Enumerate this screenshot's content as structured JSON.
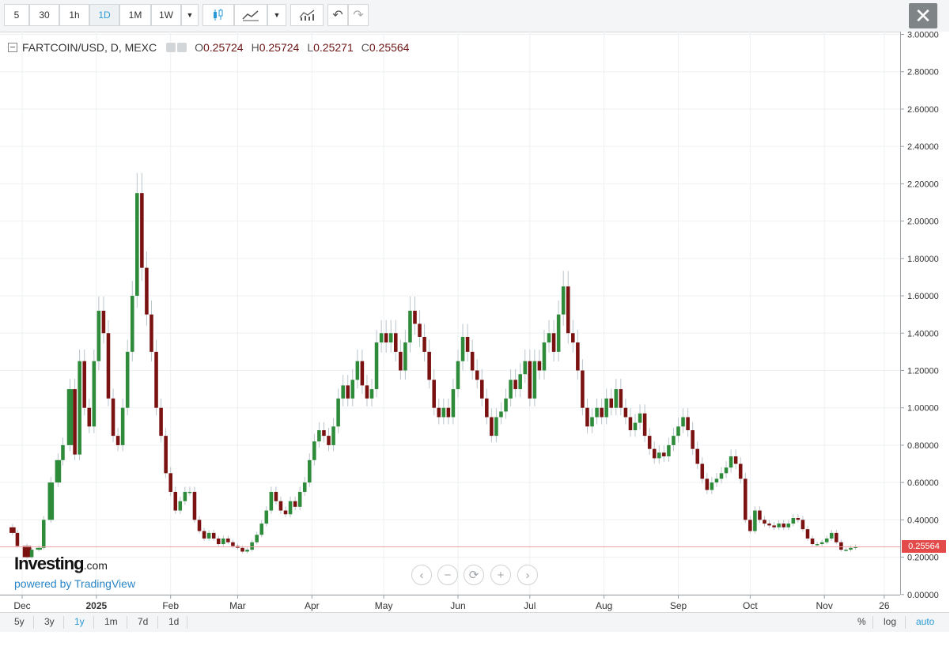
{
  "toolbar": {
    "intervals": [
      "5",
      "30",
      "1h",
      "1D",
      "1M",
      "1W"
    ],
    "active_interval": "1D",
    "close_glyph": "✕"
  },
  "legend": {
    "symbol": "FARTCOIN/USD, D, MEXC",
    "open_label": "O",
    "open": "0.25724",
    "high_label": "H",
    "high": "0.25724",
    "low_label": "L",
    "low": "0.25271",
    "close_label": "C",
    "close": "0.25564"
  },
  "branding": {
    "name": "Investing",
    "domain": ".com",
    "powered": "powered by TradingView"
  },
  "nav_controls": [
    "‹",
    "−",
    "⟳",
    "+",
    "›"
  ],
  "range_buttons": [
    "5y",
    "3y",
    "1y",
    "1m",
    "7d",
    "1d"
  ],
  "active_range": "1y",
  "scale_buttons": [
    "%",
    "log",
    "auto"
  ],
  "active_scale": "auto",
  "colors": {
    "up": "#2e8b3a",
    "down": "#7a1212",
    "wick": "#b9c4cc",
    "last_line": "#f0a0a0",
    "last_tag": "#e34a4a"
  },
  "chart_data": {
    "type": "candlestick",
    "ylim": [
      0,
      3.0
    ],
    "y_ticks": [
      "0.00000",
      "0.20000",
      "0.40000",
      "0.60000",
      "0.80000",
      "1.00000",
      "1.20000",
      "1.40000",
      "1.60000",
      "1.80000",
      "2.00000",
      "2.20000",
      "2.40000",
      "2.60000",
      "2.80000",
      "3.00000"
    ],
    "x_ticks": [
      {
        "label": "Dec",
        "day": 0
      },
      {
        "label": "2025",
        "day": 31
      },
      {
        "label": "Feb",
        "day": 62
      },
      {
        "label": "Mar",
        "day": 90
      },
      {
        "label": "Apr",
        "day": 121
      },
      {
        "label": "May",
        "day": 151
      },
      {
        "label": "Jun",
        "day": 182
      },
      {
        "label": "Jul",
        "day": 212
      },
      {
        "label": "Aug",
        "day": 243
      },
      {
        "label": "Sep",
        "day": 274
      },
      {
        "label": "Oct",
        "day": 304
      },
      {
        "label": "Nov",
        "day": 335
      },
      {
        "label": "26",
        "day": 360
      }
    ],
    "last_price": 0.25564,
    "last_price_label": "0.25564",
    "close_series": [
      {
        "day": -7,
        "close": 0.36
      },
      {
        "day": -4,
        "close": 0.33
      },
      {
        "day": -2,
        "close": 0.26
      },
      {
        "day": 2,
        "close": 0.2
      },
      {
        "day": 4,
        "close": 0.24
      },
      {
        "day": 7,
        "close": 0.25
      },
      {
        "day": 9,
        "close": 0.4
      },
      {
        "day": 12,
        "close": 0.6
      },
      {
        "day": 15,
        "close": 0.72
      },
      {
        "day": 17,
        "close": 0.8
      },
      {
        "day": 20,
        "close": 1.1
      },
      {
        "day": 22,
        "close": 0.75
      },
      {
        "day": 24,
        "close": 1.25
      },
      {
        "day": 26,
        "close": 1.0
      },
      {
        "day": 28,
        "close": 0.9
      },
      {
        "day": 30,
        "close": 1.25
      },
      {
        "day": 32,
        "close": 1.52
      },
      {
        "day": 34,
        "close": 1.4
      },
      {
        "day": 36,
        "close": 1.05
      },
      {
        "day": 38,
        "close": 0.85
      },
      {
        "day": 40,
        "close": 0.8
      },
      {
        "day": 42,
        "close": 1.0
      },
      {
        "day": 44,
        "close": 1.3
      },
      {
        "day": 46,
        "close": 1.6
      },
      {
        "day": 48,
        "close": 2.15
      },
      {
        "day": 50,
        "close": 1.75
      },
      {
        "day": 52,
        "close": 1.5
      },
      {
        "day": 54,
        "close": 1.3
      },
      {
        "day": 56,
        "close": 1.0
      },
      {
        "day": 58,
        "close": 0.85
      },
      {
        "day": 60,
        "close": 0.65
      },
      {
        "day": 62,
        "close": 0.55
      },
      {
        "day": 64,
        "close": 0.45
      },
      {
        "day": 66,
        "close": 0.5
      },
      {
        "day": 68,
        "close": 0.55
      },
      {
        "day": 70,
        "close": 0.55
      },
      {
        "day": 72,
        "close": 0.4
      },
      {
        "day": 74,
        "close": 0.34
      },
      {
        "day": 76,
        "close": 0.3
      },
      {
        "day": 78,
        "close": 0.33
      },
      {
        "day": 80,
        "close": 0.3
      },
      {
        "day": 82,
        "close": 0.27
      },
      {
        "day": 84,
        "close": 0.3
      },
      {
        "day": 86,
        "close": 0.28
      },
      {
        "day": 88,
        "close": 0.26
      },
      {
        "day": 90,
        "close": 0.25
      },
      {
        "day": 92,
        "close": 0.23
      },
      {
        "day": 94,
        "close": 0.24
      },
      {
        "day": 96,
        "close": 0.28
      },
      {
        "day": 98,
        "close": 0.32
      },
      {
        "day": 100,
        "close": 0.38
      },
      {
        "day": 102,
        "close": 0.45
      },
      {
        "day": 104,
        "close": 0.55
      },
      {
        "day": 106,
        "close": 0.5
      },
      {
        "day": 108,
        "close": 0.45
      },
      {
        "day": 110,
        "close": 0.43
      },
      {
        "day": 112,
        "close": 0.5
      },
      {
        "day": 114,
        "close": 0.47
      },
      {
        "day": 116,
        "close": 0.55
      },
      {
        "day": 118,
        "close": 0.6
      },
      {
        "day": 120,
        "close": 0.72
      },
      {
        "day": 122,
        "close": 0.82
      },
      {
        "day": 124,
        "close": 0.88
      },
      {
        "day": 126,
        "close": 0.85
      },
      {
        "day": 128,
        "close": 0.8
      },
      {
        "day": 130,
        "close": 0.9
      },
      {
        "day": 132,
        "close": 1.05
      },
      {
        "day": 134,
        "close": 1.12
      },
      {
        "day": 136,
        "close": 1.05
      },
      {
        "day": 138,
        "close": 1.15
      },
      {
        "day": 140,
        "close": 1.25
      },
      {
        "day": 142,
        "close": 1.12
      },
      {
        "day": 144,
        "close": 1.05
      },
      {
        "day": 146,
        "close": 1.1
      },
      {
        "day": 148,
        "close": 1.35
      },
      {
        "day": 150,
        "close": 1.4
      },
      {
        "day": 152,
        "close": 1.35
      },
      {
        "day": 154,
        "close": 1.4
      },
      {
        "day": 156,
        "close": 1.3
      },
      {
        "day": 158,
        "close": 1.2
      },
      {
        "day": 160,
        "close": 1.35
      },
      {
        "day": 162,
        "close": 1.52
      },
      {
        "day": 164,
        "close": 1.45
      },
      {
        "day": 166,
        "close": 1.38
      },
      {
        "day": 168,
        "close": 1.3
      },
      {
        "day": 170,
        "close": 1.15
      },
      {
        "day": 172,
        "close": 1.0
      },
      {
        "day": 174,
        "close": 0.95
      },
      {
        "day": 176,
        "close": 1.0
      },
      {
        "day": 178,
        "close": 0.95
      },
      {
        "day": 180,
        "close": 1.1
      },
      {
        "day": 182,
        "close": 1.25
      },
      {
        "day": 184,
        "close": 1.38
      },
      {
        "day": 186,
        "close": 1.3
      },
      {
        "day": 188,
        "close": 1.2
      },
      {
        "day": 190,
        "close": 1.15
      },
      {
        "day": 192,
        "close": 1.05
      },
      {
        "day": 194,
        "close": 0.95
      },
      {
        "day": 196,
        "close": 0.85
      },
      {
        "day": 198,
        "close": 0.95
      },
      {
        "day": 200,
        "close": 0.98
      },
      {
        "day": 202,
        "close": 1.05
      },
      {
        "day": 204,
        "close": 1.15
      },
      {
        "day": 206,
        "close": 1.1
      },
      {
        "day": 208,
        "close": 1.18
      },
      {
        "day": 210,
        "close": 1.25
      },
      {
        "day": 212,
        "close": 1.05
      },
      {
        "day": 214,
        "close": 1.25
      },
      {
        "day": 216,
        "close": 1.2
      },
      {
        "day": 218,
        "close": 1.35
      },
      {
        "day": 220,
        "close": 1.4
      },
      {
        "day": 222,
        "close": 1.3
      },
      {
        "day": 224,
        "close": 1.5
      },
      {
        "day": 226,
        "close": 1.65
      },
      {
        "day": 228,
        "close": 1.4
      },
      {
        "day": 230,
        "close": 1.35
      },
      {
        "day": 232,
        "close": 1.2
      },
      {
        "day": 234,
        "close": 1.0
      },
      {
        "day": 236,
        "close": 0.9
      },
      {
        "day": 238,
        "close": 0.95
      },
      {
        "day": 240,
        "close": 1.0
      },
      {
        "day": 242,
        "close": 0.95
      },
      {
        "day": 244,
        "close": 1.05
      },
      {
        "day": 246,
        "close": 1.0
      },
      {
        "day": 248,
        "close": 1.1
      },
      {
        "day": 250,
        "close": 1.0
      },
      {
        "day": 252,
        "close": 0.95
      },
      {
        "day": 254,
        "close": 0.88
      },
      {
        "day": 256,
        "close": 0.92
      },
      {
        "day": 258,
        "close": 0.97
      },
      {
        "day": 260,
        "close": 0.85
      },
      {
        "day": 262,
        "close": 0.78
      },
      {
        "day": 264,
        "close": 0.73
      },
      {
        "day": 266,
        "close": 0.76
      },
      {
        "day": 268,
        "close": 0.74
      },
      {
        "day": 270,
        "close": 0.8
      },
      {
        "day": 272,
        "close": 0.85
      },
      {
        "day": 274,
        "close": 0.9
      },
      {
        "day": 276,
        "close": 0.95
      },
      {
        "day": 278,
        "close": 0.88
      },
      {
        "day": 280,
        "close": 0.78
      },
      {
        "day": 282,
        "close": 0.7
      },
      {
        "day": 284,
        "close": 0.62
      },
      {
        "day": 286,
        "close": 0.56
      },
      {
        "day": 288,
        "close": 0.6
      },
      {
        "day": 290,
        "close": 0.62
      },
      {
        "day": 292,
        "close": 0.65
      },
      {
        "day": 294,
        "close": 0.68
      },
      {
        "day": 296,
        "close": 0.74
      },
      {
        "day": 298,
        "close": 0.7
      },
      {
        "day": 300,
        "close": 0.62
      },
      {
        "day": 302,
        "close": 0.4
      },
      {
        "day": 304,
        "close": 0.34
      },
      {
        "day": 306,
        "close": 0.45
      },
      {
        "day": 308,
        "close": 0.4
      },
      {
        "day": 310,
        "close": 0.38
      },
      {
        "day": 312,
        "close": 0.37
      },
      {
        "day": 314,
        "close": 0.36
      },
      {
        "day": 316,
        "close": 0.38
      },
      {
        "day": 318,
        "close": 0.36
      },
      {
        "day": 320,
        "close": 0.38
      },
      {
        "day": 322,
        "close": 0.41
      },
      {
        "day": 324,
        "close": 0.4
      },
      {
        "day": 326,
        "close": 0.35
      },
      {
        "day": 328,
        "close": 0.3
      },
      {
        "day": 330,
        "close": 0.27
      },
      {
        "day": 332,
        "close": 0.27
      },
      {
        "day": 334,
        "close": 0.28
      },
      {
        "day": 336,
        "close": 0.3
      },
      {
        "day": 338,
        "close": 0.33
      },
      {
        "day": 340,
        "close": 0.28
      },
      {
        "day": 342,
        "close": 0.24
      },
      {
        "day": 344,
        "close": 0.24
      },
      {
        "day": 346,
        "close": 0.25
      },
      {
        "day": 348,
        "close": 0.2556
      }
    ]
  }
}
